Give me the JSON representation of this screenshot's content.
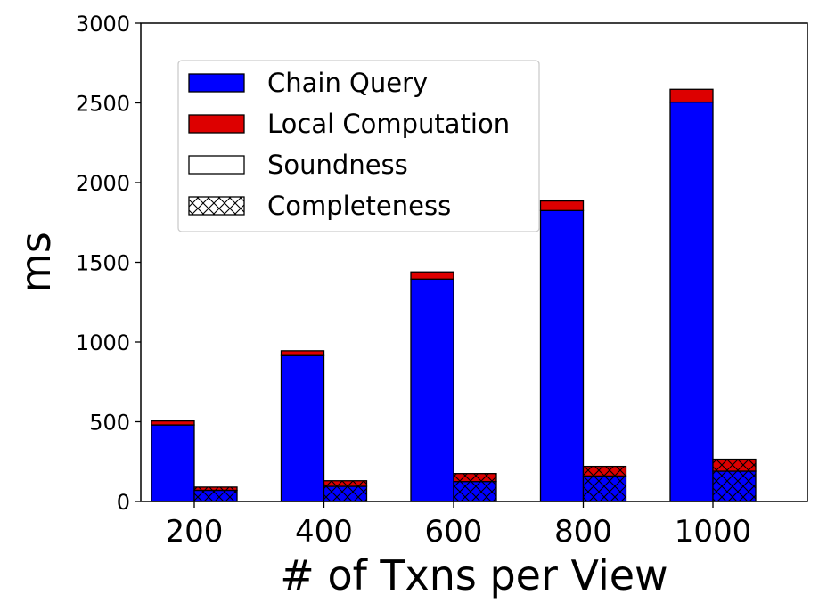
{
  "chart_data": {
    "type": "bar",
    "xlabel": "# of Txns per View",
    "ylabel": "ms",
    "ylim": [
      0,
      3000
    ],
    "yticks": [
      0,
      500,
      1000,
      1500,
      2000,
      2500,
      3000
    ],
    "categories": [
      "200",
      "400",
      "600",
      "800",
      "1000"
    ],
    "groups": [
      {
        "name": "Soundness",
        "hatch": "none",
        "segments": [
          {
            "name": "Chain Query",
            "color": "#0000ff",
            "values": [
              480,
              915,
              1395,
              1825,
              2505
            ]
          },
          {
            "name": "Local Computation",
            "color": "#dd0000",
            "values": [
              25,
              30,
              45,
              60,
              80
            ]
          }
        ]
      },
      {
        "name": "Completeness",
        "hatch": "crosshatch",
        "segments": [
          {
            "name": "Chain Query",
            "color": "#0000ff",
            "values": [
              70,
              95,
              125,
              160,
              190
            ]
          },
          {
            "name": "Local Computation",
            "color": "#dd0000",
            "values": [
              20,
              35,
              50,
              60,
              75
            ]
          }
        ]
      }
    ],
    "legend": {
      "placement": "upper-left",
      "entries": [
        {
          "label": "Chain Query",
          "color": "#0000ff",
          "hatch": "none"
        },
        {
          "label": "Local Computation",
          "color": "#dd0000",
          "hatch": "none"
        },
        {
          "label": "Soundness",
          "color": "#ffffff",
          "hatch": "none"
        },
        {
          "label": "Completeness",
          "color": "#ffffff",
          "hatch": "crosshatch"
        }
      ]
    },
    "grid": false
  }
}
